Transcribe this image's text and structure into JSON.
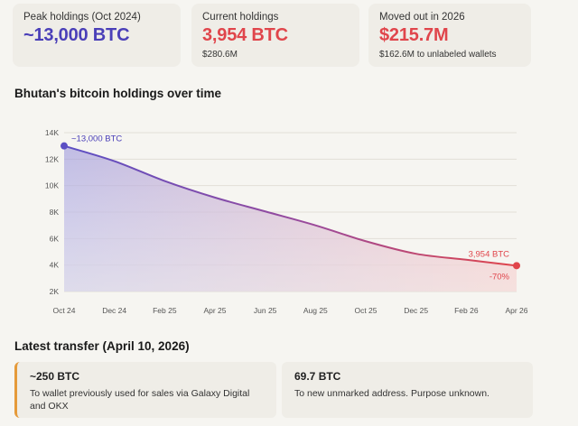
{
  "stats": [
    {
      "label": "Peak holdings (Oct 2024)",
      "value": "~13,000 BTC",
      "sub": "",
      "color": "#4a3fb8"
    },
    {
      "label": "Current holdings",
      "value": "3,954 BTC",
      "sub": "$280.6M",
      "color": "#e0454b"
    },
    {
      "label": "Moved out in 2026",
      "value": "$215.7M",
      "sub": "$162.6M to unlabeled wallets",
      "color": "#e0454b"
    }
  ],
  "chart_title": "Bhutan's bitcoin holdings over time",
  "chart_data": {
    "type": "area",
    "title": "Bhutan's bitcoin holdings over time",
    "xlabel": "",
    "ylabel": "",
    "x": [
      "2024-10",
      "2024-12",
      "2025-02",
      "2025-04",
      "2025-06",
      "2025-08",
      "2025-10",
      "2025-12",
      "2026-02",
      "2026-04"
    ],
    "x_tick_labels": [
      "Oct 24",
      "Dec 24",
      "Feb 25",
      "Apr 25",
      "Jun 25",
      "Aug 25",
      "Oct 25",
      "Dec 25",
      "Feb 26",
      "Apr 26"
    ],
    "points": [
      {
        "x": 0,
        "y": 13000
      },
      {
        "x": 1,
        "y": 11850
      },
      {
        "x": 2,
        "y": 10350
      },
      {
        "x": 3,
        "y": 9100
      },
      {
        "x": 4,
        "y": 8050
      },
      {
        "x": 5,
        "y": 7000
      },
      {
        "x": 6,
        "y": 5800
      },
      {
        "x": 7,
        "y": 4850
      },
      {
        "x": 8,
        "y": 4400
      },
      {
        "x": 9,
        "y": 3954
      }
    ],
    "ylim": [
      2000,
      14000
    ],
    "y_ticks": [
      2000,
      4000,
      6000,
      8000,
      10000,
      12000,
      14000
    ],
    "y_tick_labels": [
      "2K",
      "4K",
      "6K",
      "8K",
      "10K",
      "12K",
      "14K"
    ],
    "grid": true,
    "annotations": [
      {
        "text": "~13,000 BTC",
        "color": "#4a3fb8"
      },
      {
        "text": "3,954 BTC",
        "color": "#e0454b"
      },
      {
        "text": "-70%",
        "color": "#e0454b"
      }
    ],
    "colors": {
      "start": "#5b4fc4",
      "end": "#e0454b"
    }
  },
  "latest_title": "Latest transfer (April 10, 2026)",
  "transfers": [
    {
      "amount": "~250 BTC",
      "desc": "To wallet previously used for sales via Galaxy Digital and OKX",
      "accent": "#e59a3a"
    },
    {
      "amount": "69.7 BTC",
      "desc": "To new unmarked address. Purpose unknown."
    }
  ]
}
